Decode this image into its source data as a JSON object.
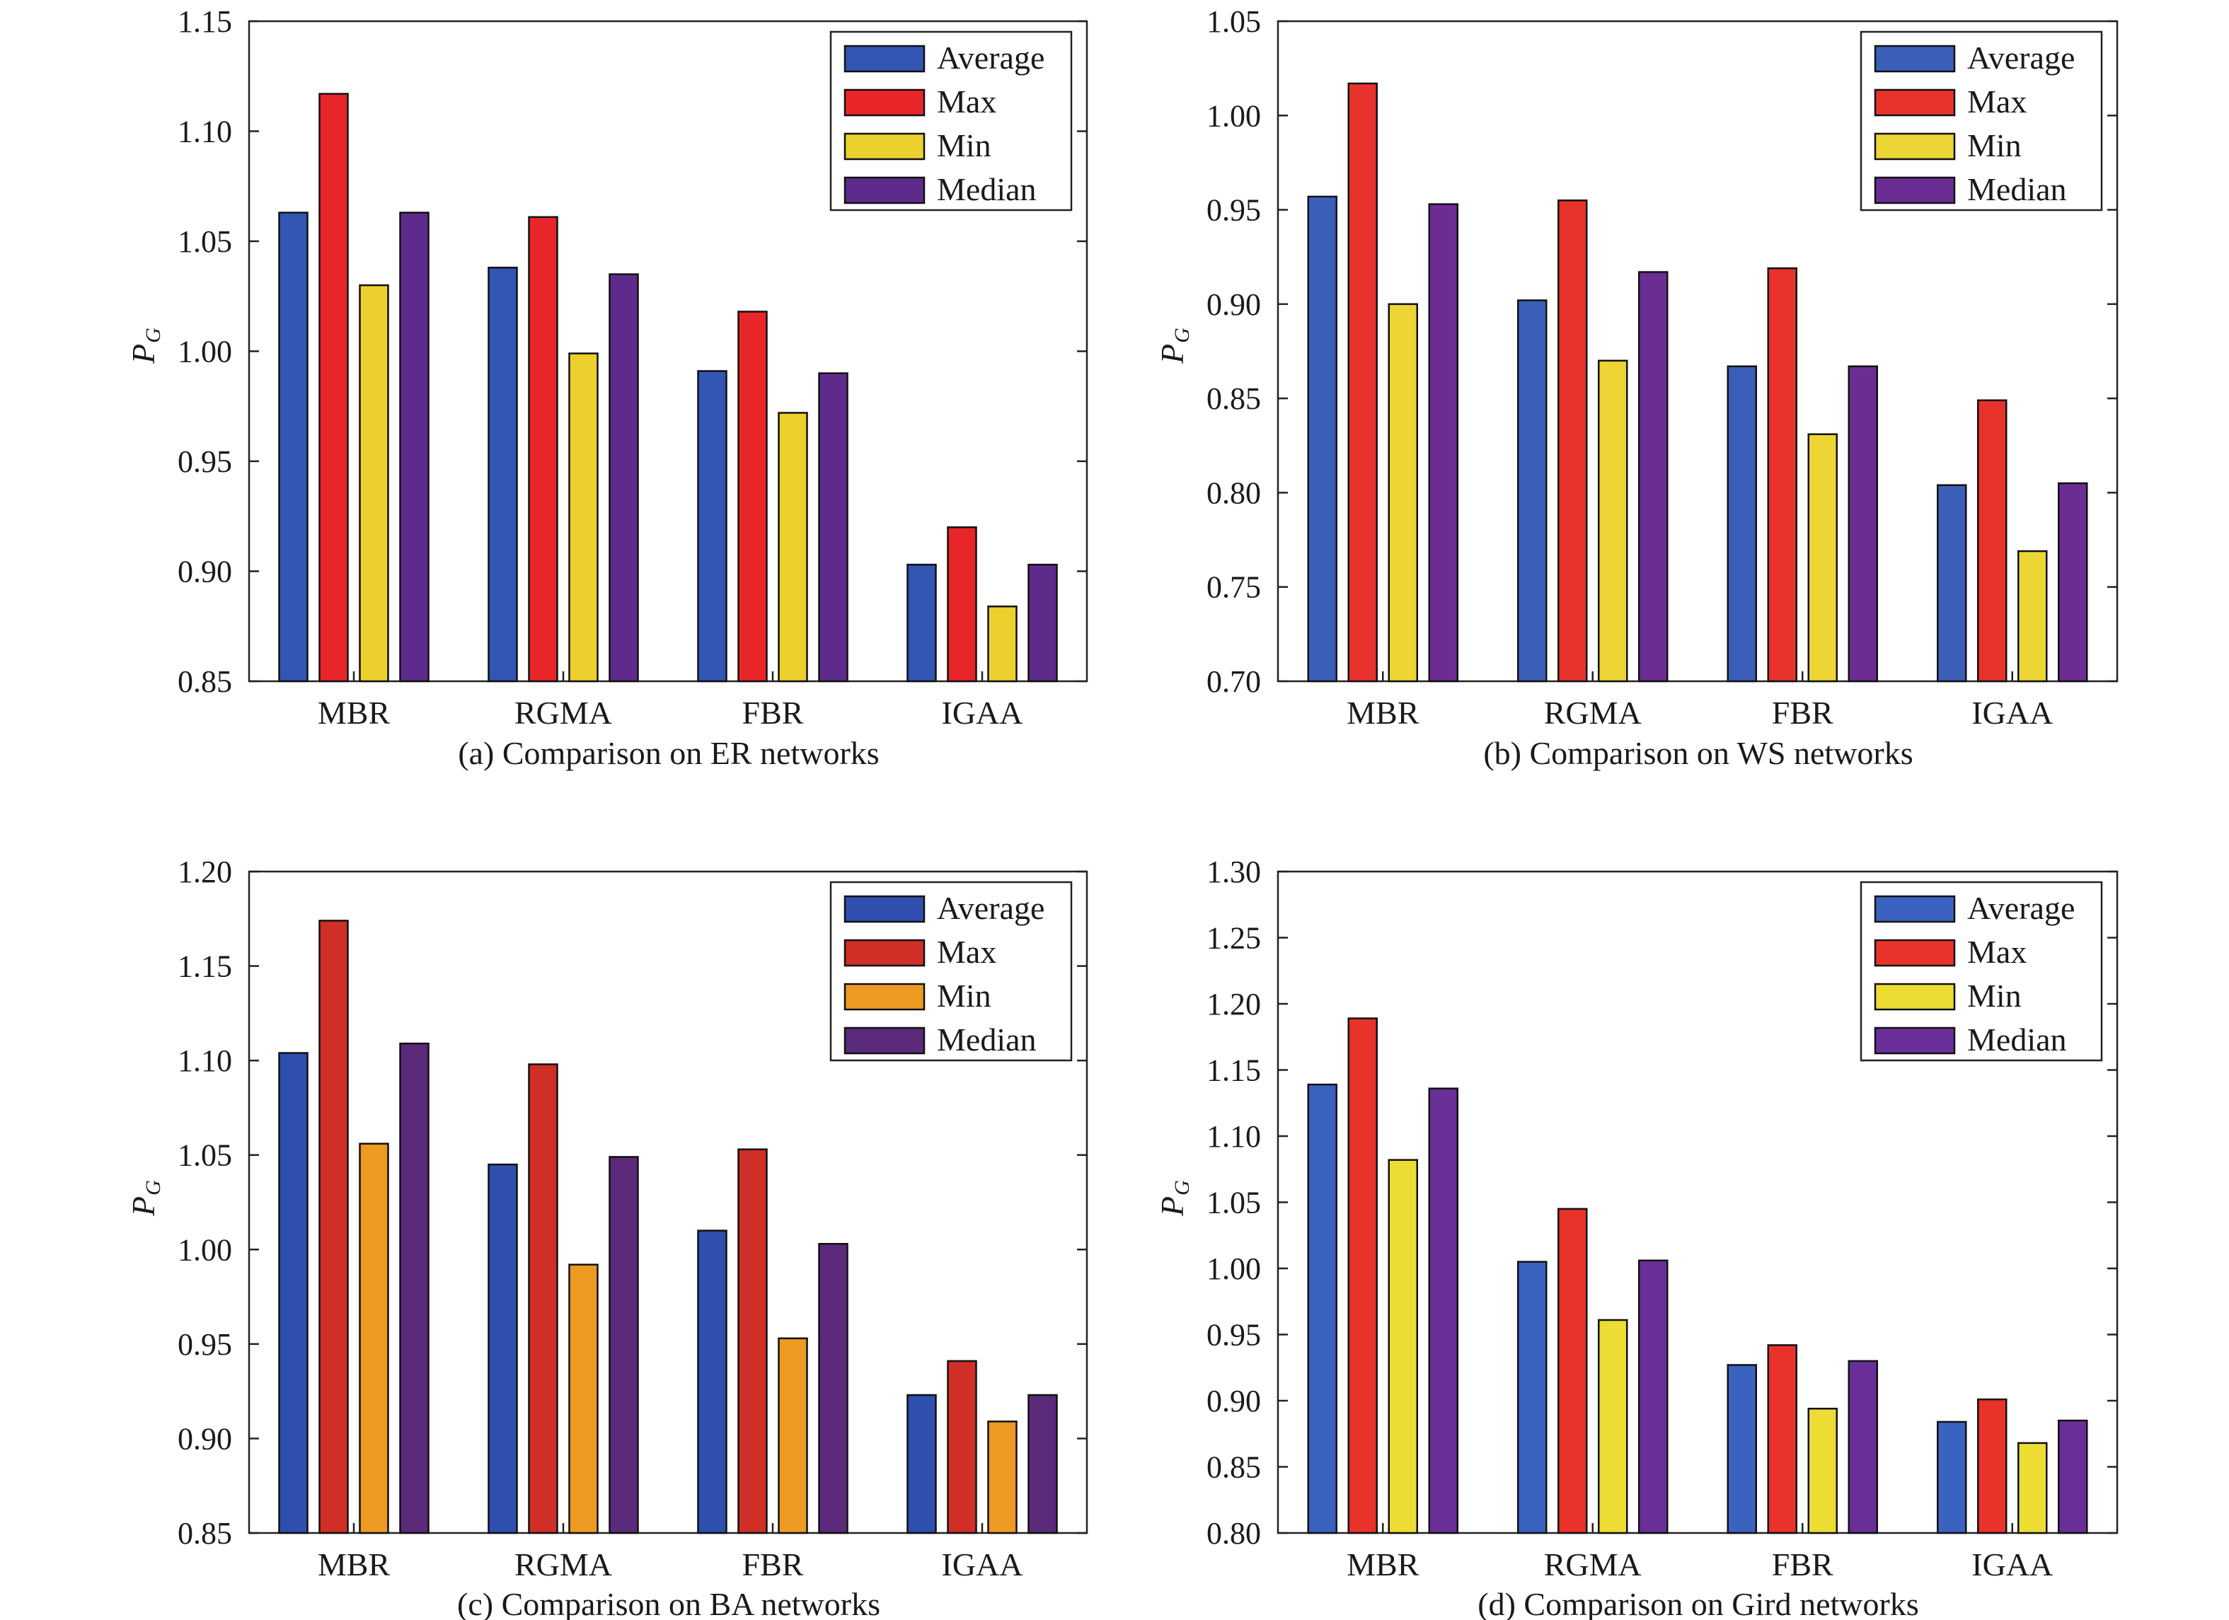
{
  "panels": [
    {
      "caption": "(a) Comparison on ER networks",
      "ylabel_main": "P",
      "ylabel_sub": "G",
      "chart_data": {
        "type": "bar",
        "categories": [
          "MBR",
          "RGMA",
          "FBR",
          "IGAA"
        ],
        "series": [
          {
            "name": "Average",
            "values": [
              1.063,
              1.038,
              0.991,
              0.903
            ]
          },
          {
            "name": "Max",
            "values": [
              1.117,
              1.061,
              1.018,
              0.92
            ]
          },
          {
            "name": "Min",
            "values": [
              1.03,
              0.999,
              0.972,
              0.884
            ]
          },
          {
            "name": "Median",
            "values": [
              1.063,
              1.035,
              0.99,
              0.903
            ]
          }
        ],
        "ylim": [
          0.85,
          1.15
        ],
        "yticks": [
          "0.85",
          "0.90",
          "0.95",
          "1.00",
          "1.05",
          "1.10",
          "1.15"
        ],
        "colors": [
          "#3355b3",
          "#e8262a",
          "#ecd02e",
          "#5e2b8c"
        ],
        "legend_position": "top-right"
      }
    },
    {
      "caption": "(b) Comparison on WS networks",
      "ylabel_main": "P",
      "ylabel_sub": "G",
      "chart_data": {
        "type": "bar",
        "categories": [
          "MBR",
          "RGMA",
          "FBR",
          "IGAA"
        ],
        "series": [
          {
            "name": "Average",
            "values": [
              0.957,
              0.902,
              0.867,
              0.804
            ]
          },
          {
            "name": "Max",
            "values": [
              1.017,
              0.955,
              0.919,
              0.849
            ]
          },
          {
            "name": "Min",
            "values": [
              0.9,
              0.87,
              0.831,
              0.769
            ]
          },
          {
            "name": "Median",
            "values": [
              0.953,
              0.917,
              0.867,
              0.805
            ]
          }
        ],
        "ylim": [
          0.7,
          1.05
        ],
        "yticks": [
          "0.70",
          "0.75",
          "0.80",
          "0.85",
          "0.90",
          "0.95",
          "1.00",
          "1.05"
        ],
        "colors": [
          "#3b5fb8",
          "#e8322c",
          "#ecd534",
          "#6b2c94"
        ],
        "legend_position": "top-right"
      }
    },
    {
      "caption": "(c) Comparison on BA networks",
      "ylabel_main": "P",
      "ylabel_sub": "G",
      "chart_data": {
        "type": "bar",
        "categories": [
          "MBR",
          "RGMA",
          "FBR",
          "IGAA"
        ],
        "series": [
          {
            "name": "Average",
            "values": [
              1.104,
              1.045,
              1.01,
              0.923
            ]
          },
          {
            "name": "Max",
            "values": [
              1.174,
              1.098,
              1.053,
              0.941
            ]
          },
          {
            "name": "Min",
            "values": [
              1.056,
              0.992,
              0.953,
              0.909
            ]
          },
          {
            "name": "Median",
            "values": [
              1.109,
              1.049,
              1.003,
              0.923
            ]
          }
        ],
        "ylim": [
          0.85,
          1.2
        ],
        "yticks": [
          "0.85",
          "0.90",
          "0.95",
          "1.00",
          "1.05",
          "1.10",
          "1.15",
          "1.20"
        ],
        "colors": [
          "#2f4fae",
          "#cf2f26",
          "#ec9a22",
          "#5b2a7a"
        ],
        "legend_position": "top-right"
      }
    },
    {
      "caption": "(d) Comparison on Gird networks",
      "ylabel_main": "P",
      "ylabel_sub": "G",
      "chart_data": {
        "type": "bar",
        "categories": [
          "MBR",
          "RGMA",
          "FBR",
          "IGAA"
        ],
        "series": [
          {
            "name": "Average",
            "values": [
              1.139,
              1.005,
              0.927,
              0.884
            ]
          },
          {
            "name": "Max",
            "values": [
              1.189,
              1.045,
              0.942,
              0.901
            ]
          },
          {
            "name": "Min",
            "values": [
              1.082,
              0.961,
              0.894,
              0.868
            ]
          },
          {
            "name": "Median",
            "values": [
              1.136,
              1.006,
              0.93,
              0.885
            ]
          }
        ],
        "ylim": [
          0.8,
          1.3
        ],
        "yticks": [
          "0.80",
          "0.85",
          "0.90",
          "0.95",
          "1.00",
          "1.05",
          "1.10",
          "1.15",
          "1.20",
          "1.25",
          "1.30"
        ],
        "colors": [
          "#3a62c0",
          "#e8322a",
          "#ecdc34",
          "#6a2e98"
        ],
        "legend_position": "top-right"
      }
    }
  ]
}
